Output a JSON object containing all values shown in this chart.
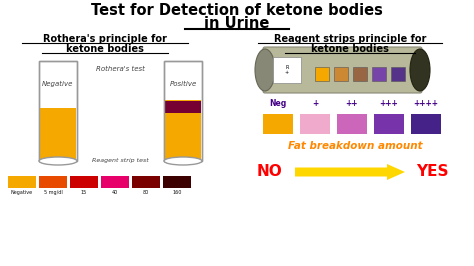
{
  "title_line1": "Test for Detection of ketone bodies",
  "title_line2": "in Urine",
  "left_heading_line1": "Rothera's principle for",
  "left_heading_line2": "ketone bodies",
  "right_heading_line1": "Reagent strips principle for",
  "right_heading_line2": "ketone bodies",
  "tube_label_center": "Rothera's test",
  "tube_label_neg": "Negative",
  "tube_label_pos": "Positive",
  "strip_label": "Reagent strip test",
  "strip_colors": [
    "#F5A800",
    "#E84B00",
    "#CC0000",
    "#E8006A",
    "#7A0000",
    "#3D0000"
  ],
  "strip_labels": [
    "Negative",
    "5 mg/dl",
    "15",
    "40",
    "80",
    "160"
  ],
  "reagent_labels": [
    "Neg",
    "+",
    "++",
    "+++",
    "++++"
  ],
  "reagent_colors": [
    "#F5A800",
    "#F0AACC",
    "#CC66BB",
    "#7733AA",
    "#442288"
  ],
  "fat_text": "Fat breakdown amount",
  "no_text": "NO",
  "yes_text": "YES",
  "bg_color": "#FFFFFF",
  "title_color": "#000000",
  "fat_color": "#FF8800",
  "no_yes_color": "#FF0000",
  "arrow_color": "#FFD700",
  "tube_color_neg": "#F5A800",
  "tube_color_pos_bottom": "#F5A800",
  "tube_color_pos_ring": "#770033",
  "left_heading_color": "#000000",
  "right_heading_color": "#000000",
  "sq_colors": [
    "#F5A800",
    "#CC8833",
    "#996644",
    "#7744AA",
    "#553388"
  ],
  "strip_img_color": "#C0C0A0"
}
